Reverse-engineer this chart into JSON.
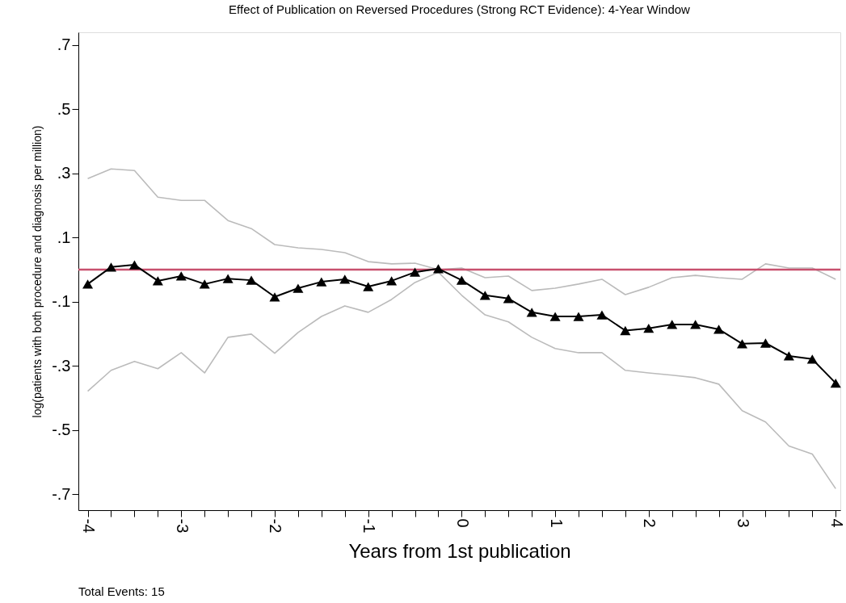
{
  "chart_data": {
    "type": "line",
    "title": "Effect of Publication on Reversed Procedures (Strong RCT Evidence): 4-Year Window",
    "xlabel": "Years from 1st publication",
    "ylabel": "log(patients with both procedure and diagnosis per million)",
    "annotations": [
      "Total Events:  15"
    ],
    "x": [
      -4,
      -3.75,
      -3.5,
      -3.25,
      -3,
      -2.75,
      -2.5,
      -2.25,
      -2,
      -1.75,
      -1.5,
      -1.25,
      -1,
      -0.75,
      -0.5,
      -0.25,
      0,
      0.25,
      0.5,
      0.75,
      1,
      1.25,
      1.5,
      1.75,
      2,
      2.25,
      2.5,
      2.75,
      3,
      3.25,
      3.5,
      3.75,
      4
    ],
    "series": [
      {
        "color": "#bbbbbb",
        "marker": "none",
        "values": [
          0.284,
          0.314,
          0.309,
          0.226,
          0.216,
          0.216,
          0.153,
          0.128,
          0.078,
          0.068,
          0.063,
          0.053,
          0.025,
          0.018,
          0.02,
          0.0,
          0.005,
          -0.025,
          -0.02,
          -0.065,
          -0.058,
          -0.045,
          -0.03,
          -0.078,
          -0.055,
          -0.025,
          -0.018,
          -0.025,
          -0.03,
          0.018,
          0.005,
          0.005,
          -0.03
        ]
      },
      {
        "color": "#bbbbbb",
        "marker": "none",
        "values": [
          -0.379,
          -0.314,
          -0.286,
          -0.309,
          -0.259,
          -0.322,
          -0.211,
          -0.201,
          -0.261,
          -0.196,
          -0.146,
          -0.113,
          -0.133,
          -0.093,
          -0.04,
          -0.008,
          -0.08,
          -0.141,
          -0.163,
          -0.211,
          -0.246,
          -0.259,
          -0.259,
          -0.314,
          -0.322,
          -0.329,
          -0.337,
          -0.357,
          -0.44,
          -0.475,
          -0.55,
          -0.575,
          -0.683
        ]
      },
      {
        "color": "#000000",
        "marker": "triangle",
        "values": [
          -0.045,
          0.008,
          0.015,
          -0.035,
          -0.02,
          -0.045,
          -0.028,
          -0.033,
          -0.085,
          -0.058,
          -0.038,
          -0.03,
          -0.053,
          -0.035,
          -0.008,
          0.003,
          -0.033,
          -0.08,
          -0.09,
          -0.133,
          -0.146,
          -0.146,
          -0.141,
          -0.19,
          -0.183,
          -0.171,
          -0.171,
          -0.186,
          -0.231,
          -0.229,
          -0.269,
          -0.279,
          -0.354
        ]
      }
    ],
    "ref_lines": [
      {
        "axis": "y",
        "value": 0,
        "color": "#c8506e"
      }
    ],
    "xlim": [
      -4.1,
      4.05
    ],
    "xticks": [
      -4,
      {
        "value": -3.75,
        "label": null
      },
      {
        "value": -3.5,
        "label": null
      },
      {
        "value": -3.25,
        "label": null
      },
      -3,
      {
        "value": -2.75,
        "label": null
      },
      {
        "value": -2.5,
        "label": null
      },
      {
        "value": -2.25,
        "label": null
      },
      -2,
      {
        "value": -1.75,
        "label": null
      },
      {
        "value": -1.5,
        "label": null
      },
      {
        "value": -1.25,
        "label": null
      },
      -1,
      {
        "value": -0.75,
        "label": null
      },
      {
        "value": -0.5,
        "label": null
      },
      {
        "value": -0.25,
        "label": null
      },
      0,
      {
        "value": 0.25,
        "label": null
      },
      {
        "value": 0.5,
        "label": null
      },
      {
        "value": 0.75,
        "label": null
      },
      1,
      {
        "value": 1.25,
        "label": null
      },
      {
        "value": 1.5,
        "label": null
      },
      {
        "value": 1.75,
        "label": null
      },
      2,
      {
        "value": 2.25,
        "label": null
      },
      {
        "value": 2.5,
        "label": null
      },
      {
        "value": 2.75,
        "label": null
      },
      3,
      {
        "value": 3.25,
        "label": null
      },
      {
        "value": 3.5,
        "label": null
      },
      {
        "value": 3.75,
        "label": null
      },
      4
    ],
    "ylim": [
      -0.75,
      0.74
    ],
    "yticks": [
      {
        "value": 0.7,
        "label": ".7"
      },
      {
        "value": 0.5,
        "label": ".5"
      },
      {
        "value": 0.3,
        "label": ".3"
      },
      {
        "value": 0.1,
        "label": ".1"
      },
      {
        "value": -0.1,
        "label": "-.1"
      },
      {
        "value": -0.3,
        "label": "-.3"
      },
      {
        "value": -0.5,
        "label": "-.5"
      },
      {
        "value": -0.7,
        "label": "-.7"
      }
    ],
    "grid": false
  }
}
